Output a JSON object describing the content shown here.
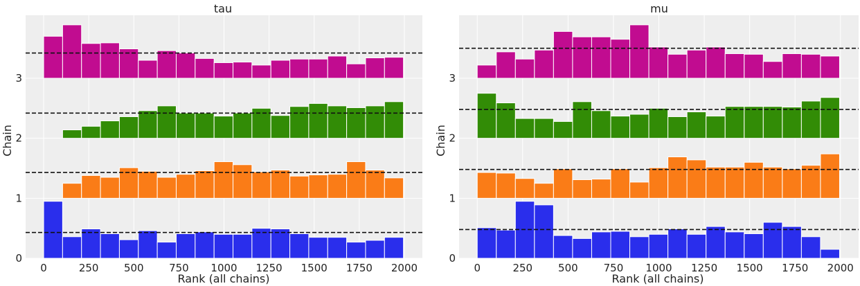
{
  "chart_data": [
    {
      "type": "bar",
      "title": "tau",
      "xlabel": "Rank (all chains)",
      "ylabel": "Chain",
      "xlim": [
        -100,
        2100
      ],
      "ylim": [
        0,
        4.05
      ],
      "xticks": [
        0,
        250,
        500,
        750,
        1000,
        1250,
        1500,
        1750,
        2000
      ],
      "yticks": [
        0,
        1,
        2,
        3
      ],
      "grid": true,
      "bin_width": 105,
      "series": [
        {
          "chain": 0,
          "color": "#2a2eec",
          "mean_line": 0.43,
          "bins": [
            {
              "x": 0,
              "v": 0.95
            },
            {
              "x": 105,
              "v": 0.36
            },
            {
              "x": 210,
              "v": 0.49
            },
            {
              "x": 315,
              "v": 0.41
            },
            {
              "x": 420,
              "v": 0.31
            },
            {
              "x": 525,
              "v": 0.46
            },
            {
              "x": 630,
              "v": 0.27
            },
            {
              "x": 735,
              "v": 0.41
            },
            {
              "x": 840,
              "v": 0.44
            },
            {
              "x": 945,
              "v": 0.4
            },
            {
              "x": 1050,
              "v": 0.4
            },
            {
              "x": 1155,
              "v": 0.5
            },
            {
              "x": 1260,
              "v": 0.49
            },
            {
              "x": 1365,
              "v": 0.41
            },
            {
              "x": 1470,
              "v": 0.35
            },
            {
              "x": 1575,
              "v": 0.35
            },
            {
              "x": 1680,
              "v": 0.27
            },
            {
              "x": 1785,
              "v": 0.3
            },
            {
              "x": 1890,
              "v": 0.35
            }
          ]
        },
        {
          "chain": 1,
          "color": "#fa7c17",
          "mean_line": 0.43,
          "bins": [
            {
              "x": 105,
              "v": 0.25
            },
            {
              "x": 210,
              "v": 0.38
            },
            {
              "x": 315,
              "v": 0.35
            },
            {
              "x": 420,
              "v": 0.51
            },
            {
              "x": 525,
              "v": 0.45
            },
            {
              "x": 630,
              "v": 0.35
            },
            {
              "x": 735,
              "v": 0.4
            },
            {
              "x": 840,
              "v": 0.46
            },
            {
              "x": 945,
              "v": 0.61
            },
            {
              "x": 1050,
              "v": 0.56
            },
            {
              "x": 1155,
              "v": 0.44
            },
            {
              "x": 1260,
              "v": 0.47
            },
            {
              "x": 1365,
              "v": 0.37
            },
            {
              "x": 1470,
              "v": 0.39
            },
            {
              "x": 1575,
              "v": 0.4
            },
            {
              "x": 1680,
              "v": 0.61
            },
            {
              "x": 1785,
              "v": 0.47
            },
            {
              "x": 1890,
              "v": 0.34
            }
          ]
        },
        {
          "chain": 2,
          "color": "#328c06",
          "mean_line": 0.42,
          "bins": [
            {
              "x": 105,
              "v": 0.14
            },
            {
              "x": 210,
              "v": 0.2
            },
            {
              "x": 315,
              "v": 0.29
            },
            {
              "x": 420,
              "v": 0.36
            },
            {
              "x": 525,
              "v": 0.46
            },
            {
              "x": 630,
              "v": 0.54
            },
            {
              "x": 735,
              "v": 0.42
            },
            {
              "x": 840,
              "v": 0.42
            },
            {
              "x": 945,
              "v": 0.37
            },
            {
              "x": 1050,
              "v": 0.42
            },
            {
              "x": 1155,
              "v": 0.5
            },
            {
              "x": 1260,
              "v": 0.38
            },
            {
              "x": 1365,
              "v": 0.53
            },
            {
              "x": 1470,
              "v": 0.58
            },
            {
              "x": 1575,
              "v": 0.54
            },
            {
              "x": 1680,
              "v": 0.51
            },
            {
              "x": 1785,
              "v": 0.54
            },
            {
              "x": 1890,
              "v": 0.61
            }
          ]
        },
        {
          "chain": 3,
          "color": "#c10c90",
          "mean_line": 0.42,
          "bins": [
            {
              "x": 0,
              "v": 0.7
            },
            {
              "x": 105,
              "v": 0.89
            },
            {
              "x": 210,
              "v": 0.58
            },
            {
              "x": 315,
              "v": 0.59
            },
            {
              "x": 420,
              "v": 0.49
            },
            {
              "x": 525,
              "v": 0.3
            },
            {
              "x": 630,
              "v": 0.46
            },
            {
              "x": 735,
              "v": 0.42
            },
            {
              "x": 840,
              "v": 0.33
            },
            {
              "x": 945,
              "v": 0.26
            },
            {
              "x": 1050,
              "v": 0.27
            },
            {
              "x": 1155,
              "v": 0.22
            },
            {
              "x": 1260,
              "v": 0.3
            },
            {
              "x": 1365,
              "v": 0.32
            },
            {
              "x": 1470,
              "v": 0.32
            },
            {
              "x": 1575,
              "v": 0.37
            },
            {
              "x": 1680,
              "v": 0.24
            },
            {
              "x": 1785,
              "v": 0.34
            },
            {
              "x": 1890,
              "v": 0.35
            }
          ]
        }
      ]
    },
    {
      "type": "bar",
      "title": "mu",
      "xlabel": "Rank (all chains)",
      "ylabel": "Chain",
      "xlim": [
        -100,
        2100
      ],
      "ylim": [
        0,
        4.05
      ],
      "xticks": [
        0,
        250,
        500,
        750,
        1000,
        1250,
        1500,
        1750,
        2000
      ],
      "yticks": [
        0,
        1,
        2,
        3
      ],
      "grid": true,
      "bin_width": 105,
      "series": [
        {
          "chain": 0,
          "color": "#2a2eec",
          "mean_line": 0.48,
          "bins": [
            {
              "x": 0,
              "v": 0.51
            },
            {
              "x": 105,
              "v": 0.47
            },
            {
              "x": 210,
              "v": 0.95
            },
            {
              "x": 315,
              "v": 0.89
            },
            {
              "x": 420,
              "v": 0.38
            },
            {
              "x": 525,
              "v": 0.33
            },
            {
              "x": 630,
              "v": 0.44
            },
            {
              "x": 735,
              "v": 0.45
            },
            {
              "x": 840,
              "v": 0.36
            },
            {
              "x": 945,
              "v": 0.4
            },
            {
              "x": 1050,
              "v": 0.49
            },
            {
              "x": 1155,
              "v": 0.4
            },
            {
              "x": 1260,
              "v": 0.53
            },
            {
              "x": 1365,
              "v": 0.44
            },
            {
              "x": 1470,
              "v": 0.41
            },
            {
              "x": 1575,
              "v": 0.6
            },
            {
              "x": 1680,
              "v": 0.53
            },
            {
              "x": 1785,
              "v": 0.36
            },
            {
              "x": 1890,
              "v": 0.15
            }
          ]
        },
        {
          "chain": 1,
          "color": "#fa7c17",
          "mean_line": 0.48,
          "bins": [
            {
              "x": 0,
              "v": 0.43
            },
            {
              "x": 105,
              "v": 0.42
            },
            {
              "x": 210,
              "v": 0.33
            },
            {
              "x": 315,
              "v": 0.25
            },
            {
              "x": 420,
              "v": 0.49
            },
            {
              "x": 525,
              "v": 0.31
            },
            {
              "x": 630,
              "v": 0.32
            },
            {
              "x": 735,
              "v": 0.49
            },
            {
              "x": 840,
              "v": 0.27
            },
            {
              "x": 945,
              "v": 0.51
            },
            {
              "x": 1050,
              "v": 0.69
            },
            {
              "x": 1155,
              "v": 0.64
            },
            {
              "x": 1260,
              "v": 0.52
            },
            {
              "x": 1365,
              "v": 0.52
            },
            {
              "x": 1470,
              "v": 0.6
            },
            {
              "x": 1575,
              "v": 0.52
            },
            {
              "x": 1680,
              "v": 0.49
            },
            {
              "x": 1785,
              "v": 0.55
            },
            {
              "x": 1890,
              "v": 0.74
            }
          ]
        },
        {
          "chain": 2,
          "color": "#328c06",
          "mean_line": 0.48,
          "bins": [
            {
              "x": 0,
              "v": 0.75
            },
            {
              "x": 105,
              "v": 0.59
            },
            {
              "x": 210,
              "v": 0.33
            },
            {
              "x": 315,
              "v": 0.33
            },
            {
              "x": 420,
              "v": 0.28
            },
            {
              "x": 525,
              "v": 0.61
            },
            {
              "x": 630,
              "v": 0.46
            },
            {
              "x": 735,
              "v": 0.37
            },
            {
              "x": 840,
              "v": 0.4
            },
            {
              "x": 945,
              "v": 0.5
            },
            {
              "x": 1050,
              "v": 0.36
            },
            {
              "x": 1155,
              "v": 0.44
            },
            {
              "x": 1260,
              "v": 0.37
            },
            {
              "x": 1365,
              "v": 0.53
            },
            {
              "x": 1470,
              "v": 0.53
            },
            {
              "x": 1575,
              "v": 0.53
            },
            {
              "x": 1680,
              "v": 0.52
            },
            {
              "x": 1785,
              "v": 0.62
            },
            {
              "x": 1890,
              "v": 0.68
            }
          ]
        },
        {
          "chain": 3,
          "color": "#c10c90",
          "mean_line": 0.5,
          "bins": [
            {
              "x": 0,
              "v": 0.22
            },
            {
              "x": 105,
              "v": 0.44
            },
            {
              "x": 210,
              "v": 0.32
            },
            {
              "x": 315,
              "v": 0.47
            },
            {
              "x": 420,
              "v": 0.78
            },
            {
              "x": 525,
              "v": 0.69
            },
            {
              "x": 630,
              "v": 0.69
            },
            {
              "x": 735,
              "v": 0.65
            },
            {
              "x": 840,
              "v": 0.89
            },
            {
              "x": 945,
              "v": 0.52
            },
            {
              "x": 1050,
              "v": 0.4
            },
            {
              "x": 1155,
              "v": 0.47
            },
            {
              "x": 1260,
              "v": 0.52
            },
            {
              "x": 1365,
              "v": 0.41
            },
            {
              "x": 1470,
              "v": 0.4
            },
            {
              "x": 1575,
              "v": 0.28
            },
            {
              "x": 1680,
              "v": 0.41
            },
            {
              "x": 1785,
              "v": 0.4
            },
            {
              "x": 1890,
              "v": 0.37
            }
          ]
        }
      ]
    }
  ]
}
